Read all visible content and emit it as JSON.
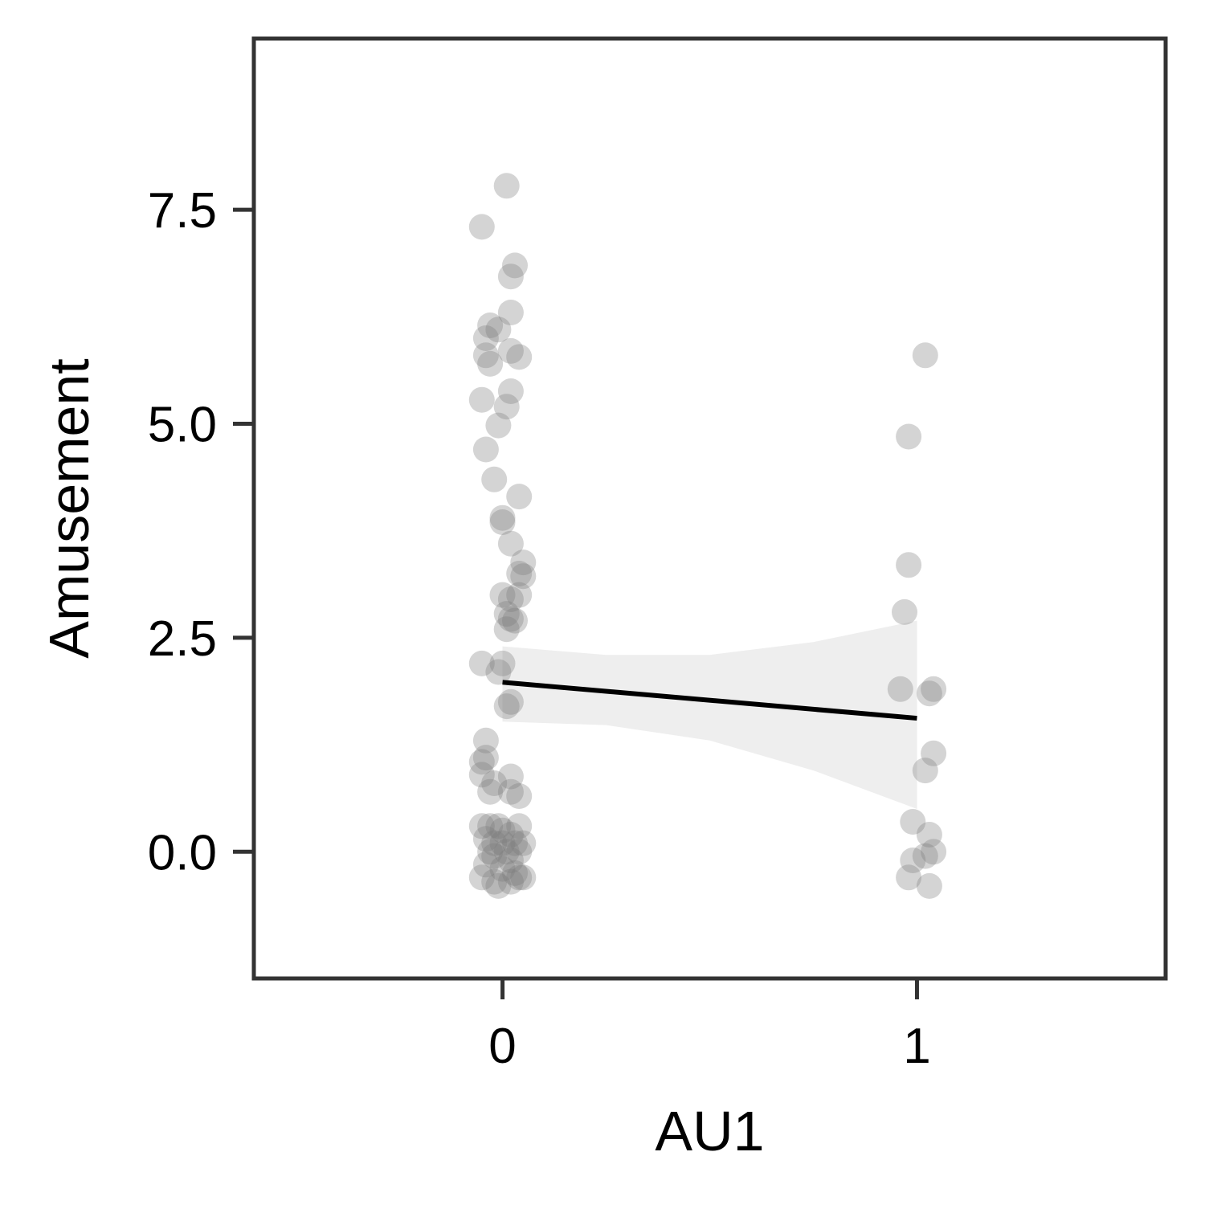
{
  "chart_data": {
    "type": "scatter",
    "xlabel": "AU1",
    "ylabel": "Amusement",
    "xlim": [
      -0.6,
      1.6
    ],
    "ylim": [
      -1.48,
      9.5
    ],
    "x_ticks": [
      {
        "value": 0,
        "label": "0"
      },
      {
        "value": 1,
        "label": "1"
      }
    ],
    "y_ticks": [
      {
        "value": 0.0,
        "label": "0.0"
      },
      {
        "value": 2.5,
        "label": "2.5"
      },
      {
        "value": 5.0,
        "label": "5.0"
      },
      {
        "value": 7.5,
        "label": "7.5"
      }
    ],
    "grid": false,
    "legend": "none",
    "point_color": "#7a7a7a",
    "point_opacity": 0.32,
    "line_color": "#000000",
    "ribbon_color": "#eeeeee",
    "points": [
      {
        "x": 0.01,
        "y": 7.78
      },
      {
        "x": -0.05,
        "y": 7.3
      },
      {
        "x": 0.03,
        "y": 6.85
      },
      {
        "x": 0.02,
        "y": 6.72
      },
      {
        "x": 0.02,
        "y": 6.3
      },
      {
        "x": -0.03,
        "y": 6.15
      },
      {
        "x": -0.01,
        "y": 6.1
      },
      {
        "x": -0.04,
        "y": 6.0
      },
      {
        "x": 0.02,
        "y": 5.85
      },
      {
        "x": -0.04,
        "y": 5.8
      },
      {
        "x": 0.04,
        "y": 5.78
      },
      {
        "x": -0.03,
        "y": 5.7
      },
      {
        "x": 0.02,
        "y": 5.38
      },
      {
        "x": -0.05,
        "y": 5.28
      },
      {
        "x": 0.01,
        "y": 5.2
      },
      {
        "x": -0.01,
        "y": 4.98
      },
      {
        "x": -0.04,
        "y": 4.7
      },
      {
        "x": -0.02,
        "y": 4.35
      },
      {
        "x": 0.04,
        "y": 4.15
      },
      {
        "x": 0.0,
        "y": 3.9
      },
      {
        "x": 0.0,
        "y": 3.85
      },
      {
        "x": 0.02,
        "y": 3.6
      },
      {
        "x": 0.05,
        "y": 3.38
      },
      {
        "x": 0.04,
        "y": 3.25
      },
      {
        "x": 0.05,
        "y": 3.22
      },
      {
        "x": 0.0,
        "y": 3.0
      },
      {
        "x": 0.04,
        "y": 3.0
      },
      {
        "x": 0.02,
        "y": 2.95
      },
      {
        "x": 0.01,
        "y": 2.78
      },
      {
        "x": 0.02,
        "y": 2.72
      },
      {
        "x": 0.03,
        "y": 2.7
      },
      {
        "x": 0.01,
        "y": 2.6
      },
      {
        "x": -0.05,
        "y": 2.2
      },
      {
        "x": 0.0,
        "y": 2.2
      },
      {
        "x": -0.01,
        "y": 2.1
      },
      {
        "x": 0.02,
        "y": 1.75
      },
      {
        "x": 0.01,
        "y": 1.7
      },
      {
        "x": -0.04,
        "y": 1.3
      },
      {
        "x": -0.04,
        "y": 1.1
      },
      {
        "x": -0.05,
        "y": 1.05
      },
      {
        "x": -0.05,
        "y": 0.9
      },
      {
        "x": 0.02,
        "y": 0.88
      },
      {
        "x": -0.02,
        "y": 0.8
      },
      {
        "x": -0.03,
        "y": 0.7
      },
      {
        "x": 0.04,
        "y": 0.65
      },
      {
        "x": 0.02,
        "y": 0.7
      },
      {
        "x": -0.05,
        "y": 0.3
      },
      {
        "x": -0.03,
        "y": 0.3
      },
      {
        "x": -0.01,
        "y": 0.3
      },
      {
        "x": 0.0,
        "y": 0.25
      },
      {
        "x": 0.02,
        "y": 0.2
      },
      {
        "x": 0.04,
        "y": 0.3
      },
      {
        "x": -0.04,
        "y": 0.15
      },
      {
        "x": -0.02,
        "y": 0.1
      },
      {
        "x": 0.0,
        "y": 0.1
      },
      {
        "x": 0.03,
        "y": 0.1
      },
      {
        "x": 0.05,
        "y": 0.1
      },
      {
        "x": -0.03,
        "y": 0.0
      },
      {
        "x": 0.01,
        "y": 0.0
      },
      {
        "x": 0.04,
        "y": 0.0
      },
      {
        "x": -0.02,
        "y": -0.05
      },
      {
        "x": 0.02,
        "y": -0.1
      },
      {
        "x": -0.04,
        "y": -0.15
      },
      {
        "x": 0.0,
        "y": -0.2
      },
      {
        "x": 0.03,
        "y": -0.25
      },
      {
        "x": 0.04,
        "y": -0.3
      },
      {
        "x": -0.05,
        "y": -0.3
      },
      {
        "x": -0.02,
        "y": -0.35
      },
      {
        "x": -0.01,
        "y": -0.4
      },
      {
        "x": 0.02,
        "y": -0.35
      },
      {
        "x": 0.05,
        "y": -0.3
      },
      {
        "x": 1.02,
        "y": 5.8
      },
      {
        "x": 0.98,
        "y": 4.85
      },
      {
        "x": 0.98,
        "y": 3.35
      },
      {
        "x": 0.97,
        "y": 2.8
      },
      {
        "x": 0.96,
        "y": 1.9
      },
      {
        "x": 1.03,
        "y": 1.85
      },
      {
        "x": 1.04,
        "y": 1.9
      },
      {
        "x": 1.04,
        "y": 1.15
      },
      {
        "x": 1.02,
        "y": 0.95
      },
      {
        "x": 0.99,
        "y": 0.35
      },
      {
        "x": 1.03,
        "y": 0.2
      },
      {
        "x": 1.04,
        "y": 0.0
      },
      {
        "x": 1.02,
        "y": -0.05
      },
      {
        "x": 0.99,
        "y": -0.1
      },
      {
        "x": 0.98,
        "y": -0.3
      },
      {
        "x": 1.03,
        "y": -0.4
      }
    ],
    "fit_line": {
      "x": [
        0,
        1
      ],
      "y": [
        1.98,
        1.56
      ]
    },
    "confidence_band": {
      "x": [
        0,
        0.25,
        0.5,
        0.75,
        1
      ],
      "lower": [
        1.52,
        1.48,
        1.3,
        0.95,
        0.5
      ],
      "upper": [
        2.4,
        2.3,
        2.3,
        2.45,
        2.7
      ]
    }
  }
}
